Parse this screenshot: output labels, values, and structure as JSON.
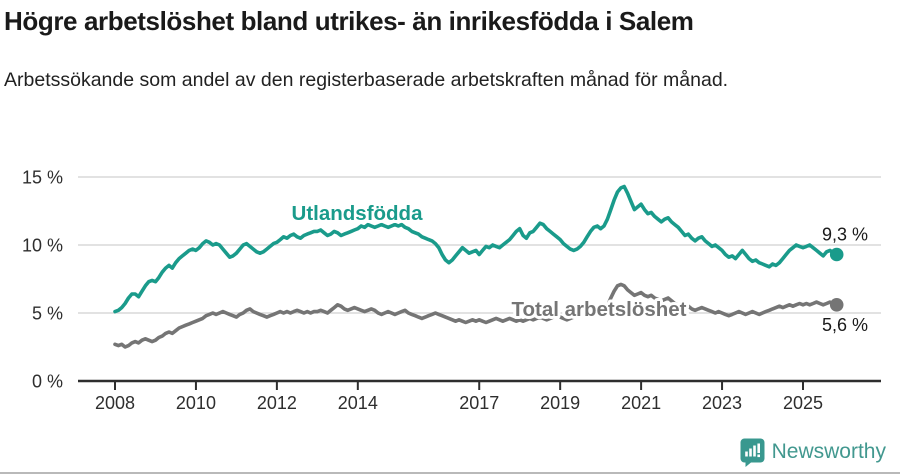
{
  "header": {
    "title": "Högre arbetslöshet bland utrikes- än inrikesfödda i Salem",
    "subtitle": "Arbetssökande som andel av den registerbaserade arbetskraften månad för månad."
  },
  "footer": {
    "brand": "Newsworthy"
  },
  "chart_data": {
    "type": "line",
    "title": "Högre arbetslöshet bland utrikes- än inrikesfödda i Salem",
    "subtitle": "Arbetssökande som andel av den registerbaserade arbetskraften månad för månad.",
    "x_unit": "month",
    "x_start": "2008-01",
    "x_end": "2025-11",
    "ylim": [
      0,
      15.5
    ],
    "grid": true,
    "legend_position": "inline-labels",
    "y_ticks": [
      {
        "value": 0,
        "label": "0 %"
      },
      {
        "value": 5,
        "label": "5 %"
      },
      {
        "value": 10,
        "label": "10 %"
      },
      {
        "value": 15,
        "label": "15 %"
      }
    ],
    "x_ticks": [
      {
        "year": 2008,
        "label": "2008"
      },
      {
        "year": 2010,
        "label": "2010"
      },
      {
        "year": 2012,
        "label": "2012"
      },
      {
        "year": 2014,
        "label": "2014"
      },
      {
        "year": 2017,
        "label": "2017"
      },
      {
        "year": 2019,
        "label": "2019"
      },
      {
        "year": 2021,
        "label": "2021"
      },
      {
        "year": 2023,
        "label": "2023"
      },
      {
        "year": 2025,
        "label": "2025"
      }
    ],
    "series": [
      {
        "name": "Utlandsfödda",
        "color": "#1a9b8b",
        "end_label": "9,3 %",
        "end_value": 9.3,
        "values": [
          5.1,
          5.2,
          5.4,
          5.7,
          6.1,
          6.4,
          6.4,
          6.2,
          6.6,
          7.0,
          7.3,
          7.4,
          7.3,
          7.6,
          8.0,
          8.3,
          8.5,
          8.3,
          8.7,
          9.0,
          9.2,
          9.4,
          9.6,
          9.7,
          9.6,
          9.8,
          10.1,
          10.3,
          10.2,
          10.0,
          10.1,
          10.0,
          9.7,
          9.4,
          9.1,
          9.2,
          9.4,
          9.7,
          10.0,
          10.1,
          9.9,
          9.7,
          9.5,
          9.4,
          9.5,
          9.7,
          9.9,
          10.1,
          10.2,
          10.4,
          10.6,
          10.5,
          10.7,
          10.8,
          10.6,
          10.5,
          10.7,
          10.8,
          10.9,
          11.0,
          11.0,
          11.1,
          10.9,
          10.7,
          10.8,
          11.0,
          10.9,
          10.7,
          10.8,
          10.9,
          11.0,
          11.1,
          11.2,
          11.4,
          11.3,
          11.5,
          11.4,
          11.3,
          11.4,
          11.5,
          11.4,
          11.3,
          11.4,
          11.5,
          11.4,
          11.5,
          11.3,
          11.2,
          11.0,
          10.9,
          10.8,
          10.6,
          10.5,
          10.4,
          10.3,
          10.1,
          9.8,
          9.3,
          8.9,
          8.7,
          8.9,
          9.2,
          9.5,
          9.8,
          9.6,
          9.4,
          9.5,
          9.6,
          9.3,
          9.6,
          9.9,
          9.8,
          10.0,
          9.9,
          9.8,
          10.0,
          10.2,
          10.4,
          10.7,
          11.0,
          11.2,
          10.7,
          10.5,
          10.9,
          11.0,
          11.3,
          11.6,
          11.5,
          11.2,
          11.0,
          10.8,
          10.6,
          10.4,
          10.1,
          9.9,
          9.7,
          9.6,
          9.7,
          9.9,
          10.2,
          10.6,
          11.0,
          11.3,
          11.4,
          11.2,
          11.4,
          11.9,
          12.6,
          13.3,
          13.9,
          14.2,
          14.3,
          13.8,
          13.2,
          12.6,
          12.8,
          13.0,
          12.6,
          12.3,
          12.4,
          12.1,
          11.9,
          11.7,
          11.9,
          12.0,
          11.7,
          11.5,
          11.3,
          11.0,
          10.7,
          10.8,
          10.5,
          10.3,
          10.5,
          10.6,
          10.3,
          10.1,
          9.9,
          10.0,
          9.8,
          9.6,
          9.3,
          9.1,
          9.2,
          9.0,
          9.3,
          9.6,
          9.3,
          9.0,
          8.8,
          8.9,
          8.7,
          8.6,
          8.5,
          8.4,
          8.6,
          8.5,
          8.7,
          9.0,
          9.3,
          9.6,
          9.8,
          10.0,
          9.9,
          9.8,
          9.9,
          10.0,
          9.8,
          9.6,
          9.4,
          9.2,
          9.5,
          9.6,
          9.4,
          9.3
        ]
      },
      {
        "name": "Total arbetslöshet",
        "color": "#757575",
        "end_label": "5,6 %",
        "end_value": 5.6,
        "values": [
          2.7,
          2.6,
          2.7,
          2.5,
          2.6,
          2.8,
          2.9,
          2.8,
          3.0,
          3.1,
          3.0,
          2.9,
          3.0,
          3.2,
          3.3,
          3.5,
          3.6,
          3.5,
          3.7,
          3.9,
          4.0,
          4.1,
          4.2,
          4.3,
          4.4,
          4.5,
          4.6,
          4.8,
          4.9,
          5.0,
          4.9,
          5.0,
          5.1,
          5.0,
          4.9,
          4.8,
          4.7,
          4.9,
          5.0,
          5.2,
          5.3,
          5.1,
          5.0,
          4.9,
          4.8,
          4.7,
          4.8,
          4.9,
          5.0,
          5.1,
          5.0,
          5.1,
          5.0,
          5.1,
          5.2,
          5.1,
          5.0,
          5.1,
          5.0,
          5.1,
          5.1,
          5.2,
          5.1,
          5.0,
          5.2,
          5.4,
          5.6,
          5.5,
          5.3,
          5.2,
          5.3,
          5.4,
          5.3,
          5.2,
          5.1,
          5.2,
          5.3,
          5.2,
          5.0,
          4.9,
          5.0,
          5.1,
          5.0,
          4.9,
          5.0,
          5.1,
          5.2,
          5.0,
          4.9,
          4.8,
          4.7,
          4.6,
          4.7,
          4.8,
          4.9,
          5.0,
          4.9,
          4.8,
          4.7,
          4.6,
          4.5,
          4.4,
          4.5,
          4.4,
          4.3,
          4.4,
          4.5,
          4.4,
          4.5,
          4.4,
          4.3,
          4.4,
          4.5,
          4.6,
          4.5,
          4.4,
          4.5,
          4.6,
          4.5,
          4.4,
          4.5,
          4.4,
          4.5,
          4.6,
          4.5,
          4.6,
          4.7,
          4.6,
          4.5,
          4.6,
          4.7,
          4.8,
          4.7,
          4.6,
          4.5,
          4.6,
          4.7,
          4.8,
          4.9,
          4.8,
          4.7,
          4.8,
          4.9,
          5.0,
          5.1,
          5.2,
          5.5,
          6.1,
          6.6,
          7.0,
          7.1,
          7.0,
          6.7,
          6.5,
          6.3,
          6.4,
          6.5,
          6.3,
          6.2,
          6.3,
          6.1,
          6.0,
          5.9,
          6.0,
          6.1,
          5.9,
          5.7,
          5.6,
          5.5,
          5.4,
          5.5,
          5.3,
          5.2,
          5.3,
          5.4,
          5.3,
          5.2,
          5.1,
          5.0,
          5.1,
          5.0,
          4.9,
          4.8,
          4.9,
          5.0,
          5.1,
          5.0,
          4.9,
          5.0,
          5.1,
          5.0,
          4.9,
          5.0,
          5.1,
          5.2,
          5.3,
          5.4,
          5.5,
          5.4,
          5.5,
          5.6,
          5.5,
          5.6,
          5.7,
          5.6,
          5.7,
          5.6,
          5.7,
          5.8,
          5.7,
          5.6,
          5.7,
          5.8,
          5.7,
          5.6
        ]
      }
    ]
  }
}
